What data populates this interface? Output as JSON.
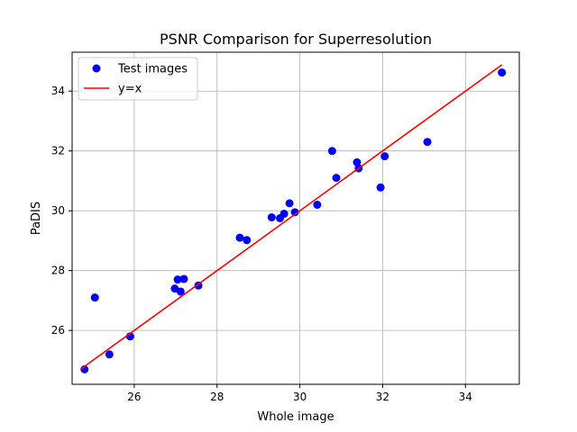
{
  "chart_data": {
    "type": "scatter",
    "title": "PSNR Comparison for Superresolution",
    "xlabel": "Whole image",
    "ylabel": "PaDIS",
    "xlim": [
      24.5,
      35.3
    ],
    "ylim": [
      24.2,
      35.3
    ],
    "xticks": [
      26,
      28,
      30,
      32,
      34
    ],
    "yticks": [
      26,
      28,
      30,
      32,
      34
    ],
    "grid": true,
    "legend_position": "top-left",
    "series": [
      {
        "name": "Test images",
        "kind": "scatter",
        "color": "#0000ff",
        "points": [
          [
            24.8,
            24.7
          ],
          [
            25.05,
            27.1
          ],
          [
            25.4,
            25.2
          ],
          [
            25.9,
            25.8
          ],
          [
            26.98,
            27.4
          ],
          [
            27.05,
            27.7
          ],
          [
            27.12,
            27.3
          ],
          [
            27.2,
            27.72
          ],
          [
            27.55,
            27.5
          ],
          [
            28.55,
            29.1
          ],
          [
            28.72,
            29.02
          ],
          [
            29.32,
            29.78
          ],
          [
            29.52,
            29.75
          ],
          [
            29.62,
            29.9
          ],
          [
            29.75,
            30.25
          ],
          [
            29.88,
            29.95
          ],
          [
            30.42,
            30.2
          ],
          [
            30.78,
            32.0
          ],
          [
            30.88,
            31.1
          ],
          [
            31.38,
            31.62
          ],
          [
            31.42,
            31.42
          ],
          [
            31.95,
            30.78
          ],
          [
            32.05,
            31.82
          ],
          [
            33.08,
            32.3
          ],
          [
            34.88,
            34.62
          ]
        ]
      },
      {
        "name": "y=x",
        "kind": "line",
        "color": "#ff0000",
        "points": [
          [
            24.7,
            24.7
          ],
          [
            34.88,
            34.88
          ]
        ]
      }
    ]
  }
}
